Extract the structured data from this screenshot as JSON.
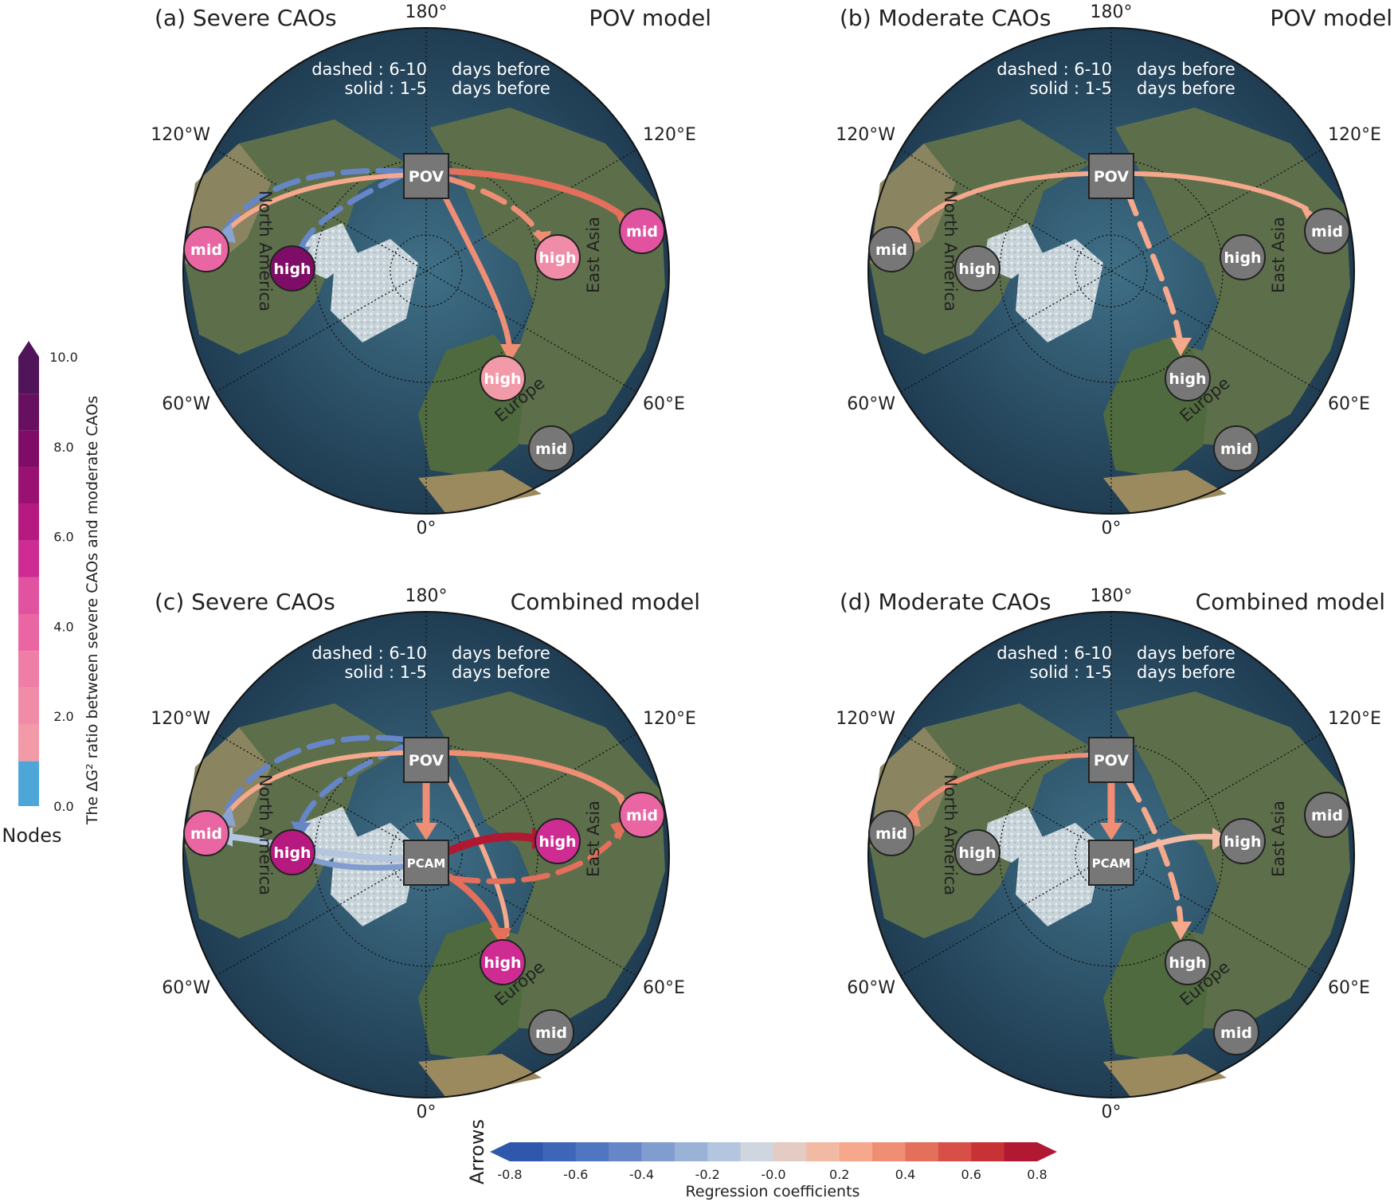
{
  "colorbar_nodes": {
    "title": "Nodes",
    "label": "The ΔG² ratio between severe CAOs and moderate CAOs",
    "ticks": [
      "0.0",
      "2.0",
      "4.0",
      "6.0",
      "8.0",
      "10.0"
    ],
    "tick_values": [
      0,
      2,
      4,
      6,
      8,
      10
    ],
    "range": [
      0,
      10
    ],
    "colors": [
      "#4ea6d8",
      "#f29aa8",
      "#f08ca7",
      "#ee7ea6",
      "#ea66a3",
      "#e153a0",
      "#cf2c93",
      "#b6197f",
      "#9a1271",
      "#7f0c66",
      "#671060",
      "#501459"
    ]
  },
  "colorbar_arrows": {
    "title": "Arrows",
    "label": "Regression coefficients",
    "ticks": [
      "-0.8",
      "-0.6",
      "-0.4",
      "-0.2",
      "-0.0",
      "0.2",
      "0.4",
      "0.6",
      "0.8"
    ],
    "tick_values": [
      -0.8,
      -0.6,
      -0.4,
      -0.2,
      0.0,
      0.2,
      0.4,
      0.6,
      0.8
    ],
    "range": [
      -0.8,
      0.8
    ],
    "colors": [
      "#2f58ad",
      "#3d66b8",
      "#5075c1",
      "#6686c8",
      "#819ccf",
      "#9bb2d7",
      "#b3c5df",
      "#cfd6df",
      "#e4ccc4",
      "#f2b9a5",
      "#f5a88c",
      "#ef8e74",
      "#e46f5b",
      "#d74f46",
      "#c73237",
      "#b11832"
    ]
  },
  "legend": {
    "dashed": "dashed : 6-10",
    "dashed_days": "days before",
    "solid": "solid : 1-5",
    "solid_days": "days before"
  },
  "labels": {
    "lon_180": "180°",
    "lon_0": "0°",
    "lon_120w": "120°W",
    "lon_120e": "120°E",
    "lon_60w": "60°W",
    "lon_60e": "60°E",
    "north_america": "North America",
    "europe": "Europe",
    "east_asia": "East Asia"
  },
  "panels": [
    {
      "id": "a",
      "title": "(a) Severe CAOs",
      "model": "POV model",
      "nodes": [
        {
          "kind": "box",
          "label": "POV"
        },
        {
          "label": "mid",
          "region": "North America",
          "color": "#ea66a3"
        },
        {
          "label": "high",
          "region": "North America",
          "color": "#7f0c66"
        },
        {
          "label": "high",
          "region": "East Asia",
          "color": "#f08ca7"
        },
        {
          "label": "mid",
          "region": "East Asia",
          "color": "#e153a0"
        },
        {
          "label": "high",
          "region": "Europe",
          "color": "#f29aa8"
        },
        {
          "label": "mid",
          "region": "Europe",
          "color": "#777777"
        }
      ],
      "arrows": [
        {
          "from": "POV",
          "to": "North America mid",
          "lag": "6-10",
          "coef": -0.45
        },
        {
          "from": "POV",
          "to": "North America high",
          "lag": "6-10",
          "coef": -0.5
        },
        {
          "from": "POV",
          "to": "North America mid",
          "lag": "1-5",
          "coef": 0.3
        },
        {
          "from": "POV",
          "to": "East Asia mid",
          "lag": "1-5",
          "coef": 0.5
        },
        {
          "from": "POV",
          "to": "East Asia high",
          "lag": "6-10",
          "coef": 0.4
        },
        {
          "from": "POV",
          "to": "Europe high",
          "lag": "1-5",
          "coef": 0.4
        }
      ]
    },
    {
      "id": "b",
      "title": "(b) Moderate CAOs",
      "model": "POV model",
      "nodes": [
        {
          "kind": "box",
          "label": "POV"
        },
        {
          "label": "mid",
          "region": "North America",
          "color": "#777777"
        },
        {
          "label": "high",
          "region": "North America",
          "color": "#777777"
        },
        {
          "label": "high",
          "region": "East Asia",
          "color": "#777777"
        },
        {
          "label": "mid",
          "region": "East Asia",
          "color": "#777777"
        },
        {
          "label": "high",
          "region": "Europe",
          "color": "#777777"
        },
        {
          "label": "mid",
          "region": "Europe",
          "color": "#777777"
        }
      ],
      "arrows": [
        {
          "from": "POV",
          "to": "North America mid",
          "lag": "1-5",
          "coef": 0.35
        },
        {
          "from": "POV",
          "to": "East Asia mid",
          "lag": "1-5",
          "coef": 0.35
        },
        {
          "from": "POV",
          "to": "Europe high",
          "lag": "6-10",
          "coef": 0.4
        }
      ]
    },
    {
      "id": "c",
      "title": "(c) Severe CAOs",
      "model": "Combined model",
      "nodes": [
        {
          "kind": "box",
          "label": "POV"
        },
        {
          "kind": "box",
          "label": "PCAM"
        },
        {
          "label": "mid",
          "region": "North America",
          "color": "#ea66a3"
        },
        {
          "label": "high",
          "region": "North America",
          "color": "#b6197f"
        },
        {
          "label": "high",
          "region": "East Asia",
          "color": "#cf2c93"
        },
        {
          "label": "mid",
          "region": "East Asia",
          "color": "#ea66a3"
        },
        {
          "label": "high",
          "region": "Europe",
          "color": "#cf2c93"
        },
        {
          "label": "mid",
          "region": "Europe",
          "color": "#777777"
        }
      ],
      "arrows": [
        {
          "from": "POV",
          "to": "North America mid",
          "lag": "6-10",
          "coef": -0.45
        },
        {
          "from": "POV",
          "to": "North America high",
          "lag": "6-10",
          "coef": -0.5
        },
        {
          "from": "POV",
          "to": "North America mid",
          "lag": "1-5",
          "coef": 0.3
        },
        {
          "from": "POV",
          "to": "East Asia mid",
          "lag": "1-5",
          "coef": 0.4
        },
        {
          "from": "POV",
          "to": "PCAM",
          "lag": "1-5",
          "coef": 0.4
        },
        {
          "from": "POV",
          "to": "Europe high",
          "lag": "1-5",
          "coef": 0.35
        },
        {
          "from": "PCAM",
          "to": "North America mid",
          "lag": "1-5",
          "coef": -0.25
        },
        {
          "from": "PCAM",
          "to": "North America high",
          "lag": "1-5",
          "coef": -0.35
        },
        {
          "from": "PCAM",
          "to": "East Asia high",
          "lag": "1-5",
          "coef": 0.8
        },
        {
          "from": "PCAM",
          "to": "East Asia mid",
          "lag": "6-10",
          "coef": 0.5
        },
        {
          "from": "PCAM",
          "to": "Europe high",
          "lag": "1-5",
          "coef": 0.5
        }
      ]
    },
    {
      "id": "d",
      "title": "(d) Moderate CAOs",
      "model": "Combined model",
      "nodes": [
        {
          "kind": "box",
          "label": "POV"
        },
        {
          "kind": "box",
          "label": "PCAM"
        },
        {
          "label": "mid",
          "region": "North America",
          "color": "#777777"
        },
        {
          "label": "high",
          "region": "North America",
          "color": "#777777"
        },
        {
          "label": "high",
          "region": "East Asia",
          "color": "#777777"
        },
        {
          "label": "mid",
          "region": "East Asia",
          "color": "#777777"
        },
        {
          "label": "high",
          "region": "Europe",
          "color": "#777777"
        },
        {
          "label": "mid",
          "region": "Europe",
          "color": "#777777"
        }
      ],
      "arrows": [
        {
          "from": "POV",
          "to": "North America mid",
          "lag": "1-5",
          "coef": 0.4
        },
        {
          "from": "POV",
          "to": "PCAM",
          "lag": "1-5",
          "coef": 0.45
        },
        {
          "from": "POV",
          "to": "Europe high",
          "lag": "6-10",
          "coef": 0.35
        },
        {
          "from": "PCAM",
          "to": "East Asia high",
          "lag": "1-5",
          "coef": 0.25
        }
      ]
    }
  ]
}
